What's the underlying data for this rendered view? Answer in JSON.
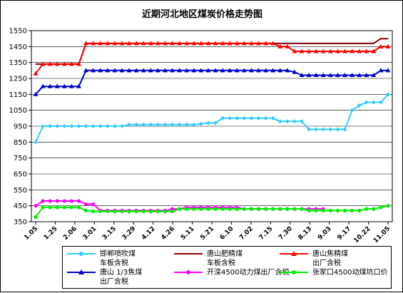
{
  "chart_data": {
    "type": "line",
    "title": "近期河北地区煤炭价格走势图",
    "xlabel": "",
    "ylabel": "",
    "ylim": [
      350,
      1550
    ],
    "yticks": [
      350,
      450,
      550,
      650,
      750,
      850,
      950,
      1050,
      1150,
      1250,
      1350,
      1450,
      1550
    ],
    "xtick_labels": [
      "1.05",
      "1.25",
      "2.06",
      "3.01",
      "3.15",
      "3.29",
      "4.12",
      "4.26",
      "5.11",
      "5.21",
      "6.10",
      "7.02",
      "7.15",
      "7.30",
      "8.13",
      "9.03",
      "9.17",
      "10.22",
      "11.05"
    ],
    "grid": true,
    "legend_position": "bottom",
    "series": [
      {
        "name": "邯郸喷吹煤车板含税",
        "color": "#33ccff",
        "values": [
          850,
          950,
          950,
          950,
          950,
          950,
          950,
          950,
          950,
          950,
          950,
          950,
          950,
          960,
          960,
          960,
          960,
          960,
          960,
          960,
          960,
          960,
          960,
          965,
          970,
          970,
          1000,
          1000,
          1000,
          1000,
          1000,
          1000,
          1000,
          1000,
          980,
          980,
          980,
          980,
          930,
          930,
          930,
          930,
          930,
          930,
          1050,
          1080,
          1100,
          1100,
          1100,
          1150
        ]
      },
      {
        "name": "唐山肥精煤车板含税",
        "color": "#800000",
        "values": [
          1340,
          1340,
          1340,
          1340,
          1340,
          1340,
          1340,
          1470,
          1470,
          1470,
          1470,
          1470,
          1470,
          1470,
          1470,
          1470,
          1470,
          1470,
          1470,
          1470,
          1470,
          1470,
          1470,
          1470,
          1470,
          1470,
          1470,
          1470,
          1470,
          1470,
          1470,
          1470,
          1470,
          1470,
          1470,
          1470,
          1470,
          1470,
          1470,
          1470,
          1470,
          1470,
          1470,
          1470,
          1470,
          1470,
          1470,
          1470,
          1500,
          1500
        ]
      },
      {
        "name": "唐山焦精煤出厂含税",
        "color": "#ff0000",
        "values": [
          1280,
          1340,
          1340,
          1340,
          1340,
          1340,
          1340,
          1470,
          1470,
          1470,
          1470,
          1470,
          1470,
          1470,
          1470,
          1470,
          1470,
          1470,
          1470,
          1470,
          1470,
          1470,
          1470,
          1470,
          1470,
          1470,
          1470,
          1470,
          1470,
          1470,
          1470,
          1470,
          1470,
          1470,
          1450,
          1450,
          1420,
          1420,
          1420,
          1420,
          1420,
          1420,
          1420,
          1420,
          1420,
          1420,
          1420,
          1420,
          1450,
          1450
        ]
      },
      {
        "name": "唐山1/3焦煤出厂含税",
        "color": "#0000cc",
        "values": [
          1150,
          1200,
          1200,
          1200,
          1200,
          1200,
          1200,
          1300,
          1300,
          1300,
          1300,
          1300,
          1300,
          1300,
          1300,
          1300,
          1300,
          1300,
          1300,
          1300,
          1300,
          1300,
          1300,
          1300,
          1300,
          1300,
          1300,
          1300,
          1300,
          1300,
          1300,
          1300,
          1300,
          1300,
          1300,
          1300,
          1290,
          1270,
          1270,
          1270,
          1270,
          1270,
          1270,
          1270,
          1270,
          1270,
          1270,
          1270,
          1300,
          1300
        ]
      },
      {
        "name": "开滦4500动力煤出厂含税",
        "color": "#ff00ff",
        "values": [
          450,
          480,
          480,
          480,
          480,
          480,
          480,
          460,
          460,
          420,
          420,
          420,
          420,
          420,
          420,
          420,
          420,
          420,
          420,
          430,
          430,
          440,
          440,
          440,
          440,
          440,
          440,
          440,
          440,
          430,
          430,
          430,
          430,
          430,
          430,
          430,
          430,
          430,
          430,
          430,
          430
        ]
      },
      {
        "name": "张家口4500动煤坑口价",
        "color": "#00ee00",
        "values": [
          380,
          440,
          440,
          440,
          440,
          440,
          440,
          420,
          415,
          415,
          415,
          415,
          415,
          415,
          415,
          415,
          415,
          415,
          415,
          415,
          430,
          430,
          430,
          430,
          430,
          430,
          430,
          430,
          430,
          430,
          430,
          430,
          430,
          430,
          430,
          430,
          430,
          430,
          420,
          420,
          420,
          420,
          420,
          420,
          420,
          420,
          430,
          430,
          440,
          450
        ]
      }
    ]
  },
  "legend": [
    {
      "line1": "邯郸喷吹煤",
      "line2": "车板含税"
    },
    {
      "line1": "唐山肥精煤",
      "line2": "车板含税"
    },
    {
      "line1": "唐山焦精煤",
      "line2": "出厂含税"
    },
    {
      "line1": "唐山 1/3焦煤",
      "line2": "出厂含税"
    },
    {
      "line1": "开滦4500动力煤出厂含税",
      "line2": ""
    },
    {
      "line1": "张家口4500动煤坑口价",
      "line2": ""
    }
  ]
}
